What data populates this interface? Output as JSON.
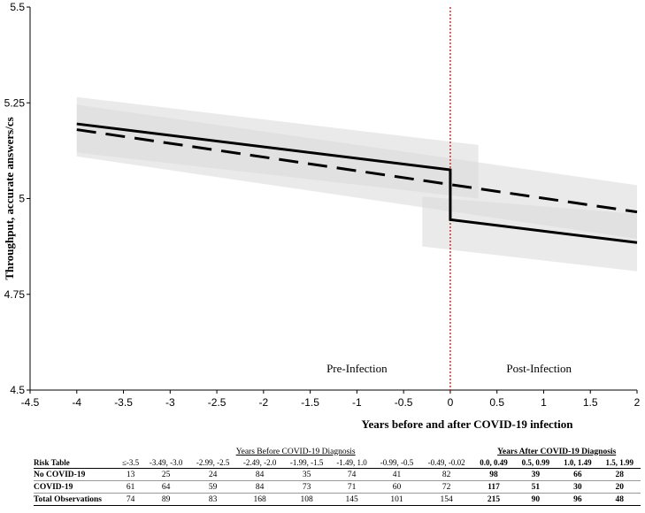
{
  "chart_data": {
    "type": "line",
    "xlabel": "Years before and after COVID-19 infection",
    "ylabel": "Throughput, accurate answers/cs",
    "xlim": [
      -4.5,
      2
    ],
    "ylim": [
      4.5,
      5.5
    ],
    "x_ticks": [
      "-4.5",
      "-4",
      "-3.5",
      "-3",
      "-2.5",
      "-2",
      "-1.5",
      "-1",
      "-0.5",
      "0",
      "0.5",
      "1",
      "1.5",
      "2"
    ],
    "y_ticks": [
      "4.5",
      "4.75",
      "5",
      "5.25",
      "5.5"
    ],
    "infection_marker_x": 0,
    "region_labels": {
      "pre": "Pre-Infection",
      "post": "Post-Infection"
    },
    "series": [
      {
        "style": "solid",
        "segments": [
          {
            "x": [
              -4,
              0
            ],
            "y": [
              5.195,
              5.075
            ]
          },
          {
            "x": [
              0,
              2
            ],
            "y": [
              4.945,
              4.885
            ]
          }
        ],
        "ci_bands": [
          {
            "x": [
              -4,
              0.3
            ],
            "lower": [
              5.12,
              5.0
            ],
            "upper": [
              5.265,
              5.14
            ]
          },
          {
            "x": [
              -0.3,
              2
            ],
            "lower": [
              4.875,
              4.81
            ],
            "upper": [
              5.005,
              4.96
            ]
          }
        ]
      },
      {
        "style": "dashed",
        "segments": [
          {
            "x": [
              -4,
              2
            ],
            "y": [
              5.18,
              4.965
            ]
          }
        ],
        "ci_bands": [
          {
            "x": [
              -4,
              2
            ],
            "lower": [
              5.11,
              4.895
            ],
            "upper": [
              5.245,
              5.035
            ]
          }
        ]
      }
    ],
    "colors": {
      "line": "#000000",
      "band": "#d9d9d9",
      "marker_line": "#c0392b"
    }
  },
  "risk_table": {
    "group_before": "Years Before COVID-19 Diagnosis",
    "group_after": "Years After COVID-19 Diagnosis",
    "header_label": "Risk Table",
    "headers": [
      "≤-3.5",
      "-3.49, -3.0",
      "-2.99, -2.5",
      "-2.49, -2.0",
      "-1.99, -1.5",
      "-1.49, 1.0",
      "-0.99, -0.5",
      "-0.49, -0.02",
      "0.0, 0.49",
      "0.5, 0.99",
      "1.0, 1.49",
      "1.5, 1.99"
    ],
    "rows": [
      {
        "label": "No COVID-19",
        "values": [
          "13",
          "25",
          "24",
          "84",
          "35",
          "74",
          "41",
          "82",
          "98",
          "39",
          "66",
          "28"
        ]
      },
      {
        "label": "COVID-19",
        "values": [
          "61",
          "64",
          "59",
          "84",
          "73",
          "71",
          "60",
          "72",
          "117",
          "51",
          "30",
          "20"
        ]
      },
      {
        "label": "Total Observations",
        "values": [
          "74",
          "89",
          "83",
          "168",
          "108",
          "145",
          "101",
          "154",
          "215",
          "90",
          "96",
          "48"
        ]
      }
    ]
  }
}
